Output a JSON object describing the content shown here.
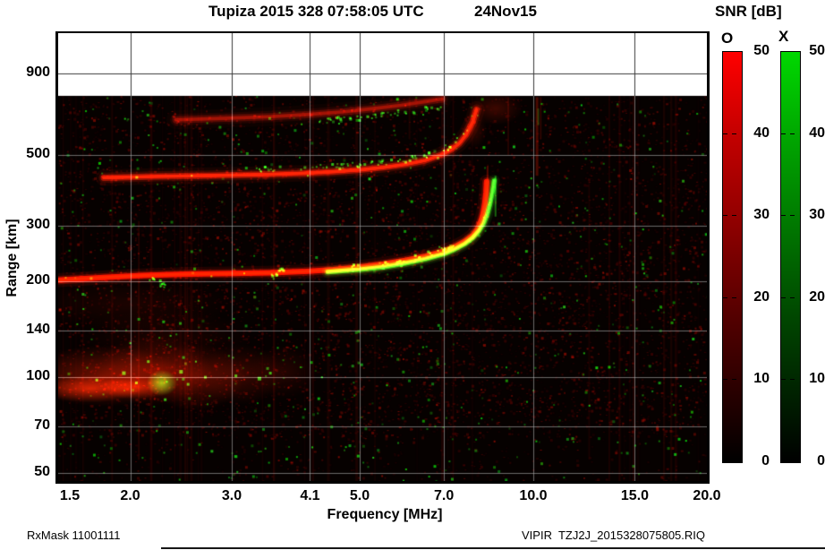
{
  "title": {
    "main": "Tupiza 2015 328 07:58:05 UTC",
    "date": "24Nov15"
  },
  "footer": {
    "left": "RxMask 11001111",
    "right": "VIPIR  TZJ2J_2015328075805.RIQ"
  },
  "colorbar": {
    "title": "SNR [dB]",
    "o_label": "O",
    "x_label": "X",
    "ticks": [
      0,
      10,
      20,
      30,
      40,
      50
    ],
    "o_top_color": "#ff0000",
    "x_top_color": "#00d800",
    "o_stops": [
      [
        "#ff0000",
        0
      ],
      [
        "#c40000",
        20
      ],
      [
        "#8e0000",
        42
      ],
      [
        "#550000",
        64
      ],
      [
        "#260000",
        84
      ],
      [
        "#000000",
        100
      ]
    ],
    "x_stops": [
      [
        "#00d800",
        0
      ],
      [
        "#00a800",
        20
      ],
      [
        "#007800",
        42
      ],
      [
        "#004800",
        64
      ],
      [
        "#002000",
        84
      ],
      [
        "#000000",
        100
      ]
    ]
  },
  "chart_data": {
    "type": "heatmap",
    "title": "Tupiza 2015 328 07:58:05 UTC 24Nov15",
    "xlabel": "Frequency [MHz]",
    "ylabel": "Range [km]",
    "x_scale": "log",
    "y_scale": "log",
    "xlim": [
      1.5,
      20
    ],
    "ylim": [
      47,
      1210
    ],
    "x_ticks": [
      1.5,
      2.0,
      3.0,
      4.1,
      5.0,
      7.0,
      10.0,
      15.0,
      20.0
    ],
    "x_tick_labels": [
      "1.5",
      "2.0",
      "3.0",
      "4.1",
      "5.0",
      "7.0",
      "10.0",
      "15.0",
      "20.0"
    ],
    "y_ticks": [
      50,
      70,
      100,
      140,
      200,
      300,
      500,
      900
    ],
    "snr_range_db": [
      0,
      50
    ],
    "data_top_km": 765,
    "background_color": "#060100",
    "grid_color_dark": "#3a3a3a",
    "grid_color_light": "rgba(175,175,175,0.6)",
    "traces": [
      {
        "name": "F2-echo-O-mode",
        "mode": "O",
        "rgb": [
          255,
          20,
          0
        ],
        "width": 6,
        "alpha": 1.0,
        "points": [
          [
            1.5,
            202
          ],
          [
            1.8,
            206
          ],
          [
            2.1,
            209
          ],
          [
            2.5,
            211
          ],
          [
            3.0,
            212
          ],
          [
            3.5,
            213
          ],
          [
            4.0,
            215
          ],
          [
            4.5,
            218
          ],
          [
            5.0,
            222
          ],
          [
            5.5,
            227
          ],
          [
            6.0,
            233
          ],
          [
            6.5,
            240
          ],
          [
            7.0,
            249
          ],
          [
            7.3,
            257
          ],
          [
            7.6,
            267
          ],
          [
            7.85,
            279
          ],
          [
            8.0,
            292
          ],
          [
            8.1,
            307
          ],
          [
            8.18,
            327
          ],
          [
            8.24,
            352
          ],
          [
            8.28,
            382
          ],
          [
            8.3,
            412
          ]
        ]
      },
      {
        "name": "F2-echo-X-mode",
        "mode": "X",
        "rgb": [
          45,
          225,
          30
        ],
        "width": 5,
        "alpha": 0.95,
        "points": [
          [
            4.4,
            214
          ],
          [
            5.0,
            218
          ],
          [
            5.5,
            222
          ],
          [
            6.0,
            228
          ],
          [
            6.5,
            235
          ],
          [
            7.0,
            244
          ],
          [
            7.3,
            252
          ],
          [
            7.6,
            262
          ],
          [
            7.85,
            274
          ],
          [
            8.05,
            288
          ],
          [
            8.2,
            304
          ],
          [
            8.32,
            325
          ],
          [
            8.42,
            352
          ],
          [
            8.5,
            385
          ],
          [
            8.55,
            415
          ]
        ]
      },
      {
        "name": "second-hop-F2-O-mode",
        "mode": "O",
        "rgb": [
          215,
          25,
          5
        ],
        "width": 7,
        "alpha": 0.75,
        "green_edge": {
          "f0": 3.3,
          "f1": 7.9,
          "dy": -7,
          "n": 70
        },
        "points": [
          [
            1.8,
            424
          ],
          [
            2.2,
            428
          ],
          [
            2.8,
            431
          ],
          [
            3.4,
            434
          ],
          [
            4.0,
            438
          ],
          [
            4.5,
            443
          ],
          [
            5.0,
            449
          ],
          [
            5.5,
            457
          ],
          [
            6.0,
            467
          ],
          [
            6.5,
            481
          ],
          [
            6.9,
            499
          ],
          [
            7.2,
            519
          ],
          [
            7.45,
            545
          ],
          [
            7.65,
            580
          ],
          [
            7.85,
            635
          ],
          [
            7.97,
            695
          ]
        ]
      },
      {
        "name": "third-echo-band",
        "mode": "O",
        "rgb": [
          160,
          18,
          5
        ],
        "width": 8,
        "alpha": 0.5,
        "green_edge": {
          "f0": 4.0,
          "f1": 6.9,
          "dy": 7,
          "n": 45
        },
        "points": [
          [
            2.4,
            645
          ],
          [
            2.9,
            652
          ],
          [
            3.5,
            660
          ],
          [
            4.1,
            671
          ],
          [
            4.7,
            684
          ],
          [
            5.3,
            700
          ],
          [
            5.9,
            717
          ],
          [
            6.5,
            736
          ],
          [
            6.95,
            750
          ]
        ]
      }
    ],
    "green_clumps": [
      {
        "f": 2.18,
        "km": 206
      },
      {
        "f": 2.26,
        "km": 198
      },
      {
        "f": 3.55,
        "km": 210
      },
      {
        "f": 3.62,
        "km": 216
      },
      {
        "f": 4.9,
        "km": 222
      },
      {
        "f": 5.5,
        "km": 230
      },
      {
        "f": 5.85,
        "km": 232
      },
      {
        "f": 6.3,
        "km": 240
      },
      {
        "f": 6.6,
        "km": 246
      },
      {
        "f": 6.9,
        "km": 252
      },
      {
        "f": 7.15,
        "km": 257
      }
    ],
    "blobs": [
      {
        "f": 8.6,
        "km": 700,
        "fw": 0.95,
        "kmw": 85,
        "rgba": [
          200,
          25,
          0,
          0.28
        ]
      },
      {
        "f": 7.9,
        "km": 600,
        "fw": 0.4,
        "kmw": 80,
        "rgba": [
          200,
          25,
          0,
          0.22
        ]
      },
      {
        "f": 1.8,
        "km": 101,
        "fw": 0.55,
        "kmw": 22,
        "rgba": [
          255,
          35,
          0,
          0.42
        ]
      },
      {
        "f": 2.2,
        "km": 105,
        "fw": 0.5,
        "kmw": 26,
        "rgba": [
          235,
          30,
          0,
          0.35
        ]
      },
      {
        "f": 2.6,
        "km": 100,
        "fw": 0.5,
        "kmw": 24,
        "rgba": [
          235,
          30,
          0,
          0.33
        ]
      },
      {
        "f": 3.1,
        "km": 102,
        "fw": 0.55,
        "kmw": 22,
        "rgba": [
          210,
          25,
          0,
          0.25
        ]
      },
      {
        "f": 3.7,
        "km": 104,
        "fw": 0.5,
        "kmw": 20,
        "rgba": [
          190,
          20,
          0,
          0.16
        ]
      },
      {
        "f": 1.7,
        "km": 92,
        "fw": 0.35,
        "kmw": 9,
        "rgba": [
          255,
          45,
          5,
          0.6
        ]
      },
      {
        "f": 2.05,
        "km": 93,
        "fw": 0.3,
        "kmw": 8,
        "rgba": [
          255,
          45,
          5,
          0.5
        ]
      },
      {
        "f": 2.0,
        "km": 170,
        "fw": 0.8,
        "kmw": 30,
        "rgba": [
          170,
          20,
          0,
          0.13
        ]
      },
      {
        "f": 2.3,
        "km": 135,
        "fw": 0.8,
        "kmw": 25,
        "rgba": [
          170,
          20,
          0,
          0.12
        ]
      },
      {
        "f": 2.27,
        "km": 96,
        "fw": 0.14,
        "kmw": 9,
        "rgba": [
          40,
          210,
          25,
          0.85
        ]
      }
    ],
    "green_specks": [
      {
        "f": 1.95,
        "km": 103,
        "s": 4
      },
      {
        "f": 2.05,
        "km": 96,
        "s": 3
      },
      {
        "f": 2.45,
        "km": 104,
        "s": 4
      },
      {
        "f": 2.52,
        "km": 95,
        "s": 3
      },
      {
        "f": 2.7,
        "km": 100,
        "s": 3
      },
      {
        "f": 3.05,
        "km": 101,
        "s": 3
      },
      {
        "f": 3.35,
        "km": 99,
        "s": 4
      },
      {
        "f": 3.5,
        "km": 103,
        "s": 3
      },
      {
        "f": 2.15,
        "km": 112,
        "s": 3
      },
      {
        "f": 2.6,
        "km": 112,
        "s": 2
      },
      {
        "f": 4.3,
        "km": 100,
        "s": 2
      },
      {
        "f": 2.3,
        "km": 85,
        "s": 3
      },
      {
        "f": 1.75,
        "km": 98,
        "s": 3
      },
      {
        "f": 2.0,
        "km": 128,
        "s": 2
      },
      {
        "f": 2.35,
        "km": 135,
        "s": 2
      }
    ],
    "bright_stripes": [
      {
        "f": 10.15,
        "km1": 760,
        "km2": 430,
        "w": 3,
        "a": 0.3
      },
      {
        "f": 10.3,
        "km1": 760,
        "km2": 560,
        "w": 2,
        "a": 0.18
      },
      {
        "f": 9.05,
        "km1": 760,
        "km2": 500,
        "w": 2,
        "a": 0.14
      },
      {
        "f": 8.33,
        "km1": 460,
        "km2": 415,
        "w": 2,
        "a": 0.35
      },
      {
        "f": 2.07,
        "km1": 310,
        "km2": 55,
        "w": 2,
        "a": 0.12
      },
      {
        "f": 12.5,
        "km1": 420,
        "km2": 55,
        "w": 2,
        "a": 0.08
      },
      {
        "f": 6.1,
        "km1": 760,
        "km2": 560,
        "w": 2,
        "a": 0.1
      }
    ],
    "green_streaks": [
      {
        "f": 8.6,
        "km1": 430,
        "km2": 320,
        "w": 2,
        "a": 0.45
      },
      {
        "f": 10.2,
        "km1": 700,
        "km2": 620,
        "w": 2,
        "a": 0.25
      }
    ],
    "noise": {
      "seed": 20151124,
      "red_dots": 9000,
      "green_dots": 620,
      "stripes": 46
    }
  }
}
